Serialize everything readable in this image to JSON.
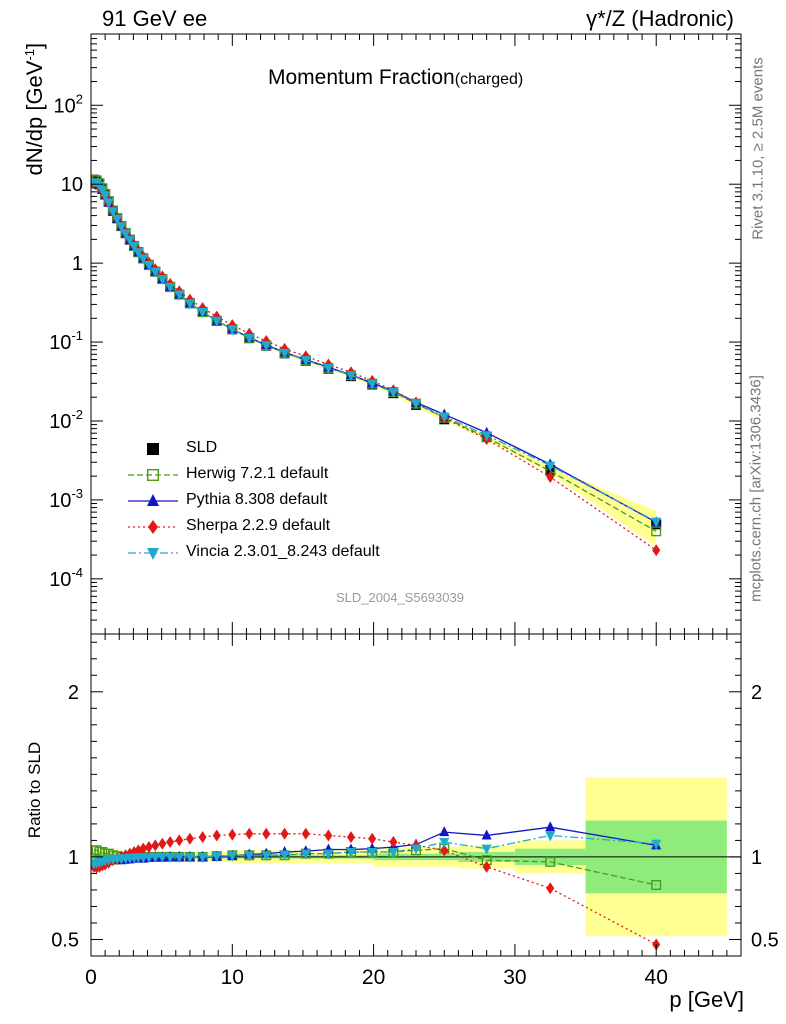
{
  "header": {
    "left": "91 GeV ee",
    "right": "γ*/Z (Hadronic)"
  },
  "title": {
    "main": "Momentum Fraction",
    "sub": "(charged)"
  },
  "side_text": {
    "rivet": "Rivet 3.1.10, ≥ 2.5M events",
    "mcplots": "mcplots.cern.ch [arXiv:1306.3436]"
  },
  "analysis_id": "SLD_2004_S5693039",
  "ylabel_main": "dN/dp [GeV",
  "ylabel_main_sup": "-1",
  "ylabel_ratio": "Ratio to SLD",
  "xlabel": "p [GeV]",
  "legend": [
    {
      "label": "SLD",
      "color": "#000000",
      "marker": "square-filled",
      "style": "none"
    },
    {
      "label": "Herwig 7.2.1 default",
      "color": "#4b9a1e",
      "marker": "square-open",
      "style": "dashed"
    },
    {
      "label": "Pythia 8.308 default",
      "color": "#1515c8",
      "marker": "triangle-up",
      "style": "solid"
    },
    {
      "label": "Sherpa 2.2.9 default",
      "color": "#e01818",
      "marker": "diamond",
      "style": "dotted"
    },
    {
      "label": "Vincia 2.3.01_8.243 default",
      "color": "#22aacc",
      "marker": "triangle-down",
      "style": "dashdot"
    }
  ],
  "chart_data": {
    "type": "scatter",
    "x_range": [
      0,
      46
    ],
    "main": {
      "ylim": [
        2e-05,
        800
      ],
      "log_y": true,
      "y_tick_labels": [
        "10^{-4}",
        "10^{-3}",
        "10^{-2}",
        "10^{-1}",
        "1",
        "10",
        "10^{2}"
      ],
      "data_points": {
        "x": [
          0.2,
          0.4,
          0.6,
          0.8,
          1.0,
          1.25,
          1.55,
          1.85,
          2.15,
          2.45,
          2.75,
          3.05,
          3.35,
          3.7,
          4.1,
          4.55,
          5.05,
          5.6,
          6.25,
          7.0,
          7.9,
          8.9,
          10.0,
          11.2,
          12.4,
          13.7,
          15.2,
          16.8,
          18.4,
          19.9,
          21.4,
          23.0,
          25.0,
          28.0,
          32.5,
          40.0
        ],
        "y": [
          11.0,
          10.8,
          10.0,
          8.7,
          7.4,
          6.0,
          4.6,
          3.7,
          2.95,
          2.4,
          1.98,
          1.65,
          1.38,
          1.15,
          0.95,
          0.78,
          0.63,
          0.5,
          0.4,
          0.31,
          0.24,
          0.185,
          0.145,
          0.112,
          0.09,
          0.072,
          0.058,
          0.046,
          0.037,
          0.029,
          0.0225,
          0.016,
          0.0105,
          0.0063,
          0.0024,
          0.00049
        ]
      },
      "reference_band": {
        "color": "#ffff66",
        "opacity": 0.7
      },
      "series": [
        {
          "name": "SLD",
          "y": [
            11.0,
            10.8,
            10.0,
            8.7,
            7.4,
            6.0,
            4.6,
            3.7,
            2.95,
            2.4,
            1.98,
            1.65,
            1.38,
            1.15,
            0.95,
            0.78,
            0.63,
            0.5,
            0.4,
            0.31,
            0.24,
            0.185,
            0.145,
            0.112,
            0.09,
            0.072,
            0.058,
            0.046,
            0.037,
            0.029,
            0.0225,
            0.016,
            0.0105,
            0.0063,
            0.0024,
            0.00049
          ]
        },
        {
          "name": "Herwig 7.2.1 default",
          "y": [
            11.5,
            11.2,
            10.3,
            8.9,
            7.55,
            6.1,
            4.65,
            3.72,
            2.96,
            2.4,
            1.98,
            1.65,
            1.38,
            1.15,
            0.95,
            0.78,
            0.63,
            0.5,
            0.4,
            0.31,
            0.24,
            0.186,
            0.146,
            0.113,
            0.091,
            0.073,
            0.059,
            0.047,
            0.038,
            0.0298,
            0.0232,
            0.0166,
            0.011,
            0.0062,
            0.00232,
            0.0004
          ]
        },
        {
          "name": "Pythia 8.308 default",
          "y": [
            10.5,
            10.4,
            9.65,
            8.45,
            7.2,
            5.85,
            4.5,
            3.62,
            2.9,
            2.36,
            1.96,
            1.64,
            1.37,
            1.14,
            0.945,
            0.778,
            0.628,
            0.5,
            0.4,
            0.31,
            0.24,
            0.186,
            0.146,
            0.114,
            0.092,
            0.074,
            0.06,
            0.048,
            0.0385,
            0.0303,
            0.0238,
            0.0172,
            0.0121,
            0.0071,
            0.00282,
            0.00052
          ]
        },
        {
          "name": "Sherpa 2.2.9 default",
          "y": [
            10.4,
            10.1,
            9.4,
            8.25,
            7.05,
            5.8,
            4.5,
            3.65,
            2.96,
            2.43,
            2.03,
            1.7,
            1.44,
            1.21,
            1.01,
            0.835,
            0.68,
            0.545,
            0.44,
            0.345,
            0.27,
            0.21,
            0.164,
            0.128,
            0.103,
            0.082,
            0.066,
            0.052,
            0.0415,
            0.0322,
            0.0245,
            0.0171,
            0.0109,
            0.0059,
            0.00195,
            0.00023
          ]
        },
        {
          "name": "Vincia 2.3.01_8.243 default",
          "y": [
            10.6,
            10.45,
            9.7,
            8.5,
            7.25,
            5.9,
            4.55,
            3.65,
            2.92,
            2.38,
            1.97,
            1.645,
            1.375,
            1.145,
            0.948,
            0.78,
            0.63,
            0.5,
            0.4,
            0.31,
            0.24,
            0.186,
            0.146,
            0.113,
            0.091,
            0.073,
            0.059,
            0.047,
            0.038,
            0.0298,
            0.0232,
            0.0168,
            0.0114,
            0.0066,
            0.00272,
            0.00053
          ]
        }
      ]
    },
    "ratio": {
      "ylim": [
        0.4,
        2.35
      ],
      "y_tick_labels": [
        "0.5",
        "1",
        "2"
      ],
      "inner_band": {
        "color": "#33dd66",
        "opacity": 0.55
      },
      "band_bins": [
        {
          "x_low": 0.0,
          "x_high": 2.0,
          "stat": 0.03,
          "tot": 0.05
        },
        {
          "x_low": 2.0,
          "x_high": 10.0,
          "stat": 0.01,
          "tot": 0.03
        },
        {
          "x_low": 10.0,
          "x_high": 20.0,
          "stat": 0.01,
          "tot": 0.04
        },
        {
          "x_low": 20.0,
          "x_high": 26.0,
          "stat": 0.02,
          "tot": 0.06
        },
        {
          "x_low": 26.0,
          "x_high": 30.0,
          "stat": 0.03,
          "tot": 0.07
        },
        {
          "x_low": 30.0,
          "x_high": 35.0,
          "stat": 0.05,
          "tot": 0.1
        },
        {
          "x_low": 35.0,
          "x_high": 45.0,
          "stat": 0.22,
          "tot": 0.48
        }
      ],
      "series": [
        {
          "name": "Herwig 7.2.1 default",
          "y": [
            1.04,
            1.04,
            1.03,
            1.03,
            1.02,
            1.02,
            1.01,
            1.005,
            1.0,
            1.0,
            1.0,
            1.0,
            1.0,
            1.0,
            1.0,
            1.0,
            1.0,
            1.0,
            1.0,
            1.0,
            1.0,
            1.005,
            1.01,
            1.01,
            1.01,
            1.01,
            1.02,
            1.02,
            1.03,
            1.03,
            1.03,
            1.04,
            1.05,
            0.98,
            0.97,
            0.83
          ]
        },
        {
          "name": "Pythia 8.308 default",
          "y": [
            0.95,
            0.96,
            0.965,
            0.97,
            0.975,
            0.975,
            0.98,
            0.98,
            0.98,
            0.983,
            0.985,
            0.99,
            0.99,
            0.99,
            0.995,
            0.997,
            0.997,
            1.0,
            1.0,
            1.0,
            1.0,
            1.0,
            1.005,
            1.015,
            1.02,
            1.03,
            1.035,
            1.045,
            1.045,
            1.05,
            1.06,
            1.075,
            1.15,
            1.13,
            1.18,
            1.07
          ]
        },
        {
          "name": "Sherpa 2.2.9 default",
          "y": [
            0.94,
            0.935,
            0.94,
            0.948,
            0.953,
            0.965,
            0.98,
            0.988,
            1.0,
            1.01,
            1.02,
            1.03,
            1.04,
            1.05,
            1.06,
            1.07,
            1.08,
            1.09,
            1.1,
            1.11,
            1.12,
            1.13,
            1.135,
            1.14,
            1.14,
            1.14,
            1.14,
            1.13,
            1.12,
            1.11,
            1.09,
            1.07,
            1.04,
            0.94,
            0.81,
            0.47
          ]
        },
        {
          "name": "Vincia 2.3.01_8.243 default",
          "y": [
            0.96,
            0.965,
            0.97,
            0.975,
            0.98,
            0.983,
            0.988,
            0.99,
            0.99,
            0.993,
            0.995,
            0.997,
            0.997,
            0.997,
            0.998,
            1.0,
            1.0,
            1.0,
            1.0,
            1.0,
            1.0,
            1.005,
            1.007,
            1.01,
            1.01,
            1.015,
            1.02,
            1.02,
            1.03,
            1.03,
            1.03,
            1.05,
            1.09,
            1.05,
            1.13,
            1.08
          ]
        }
      ]
    }
  }
}
